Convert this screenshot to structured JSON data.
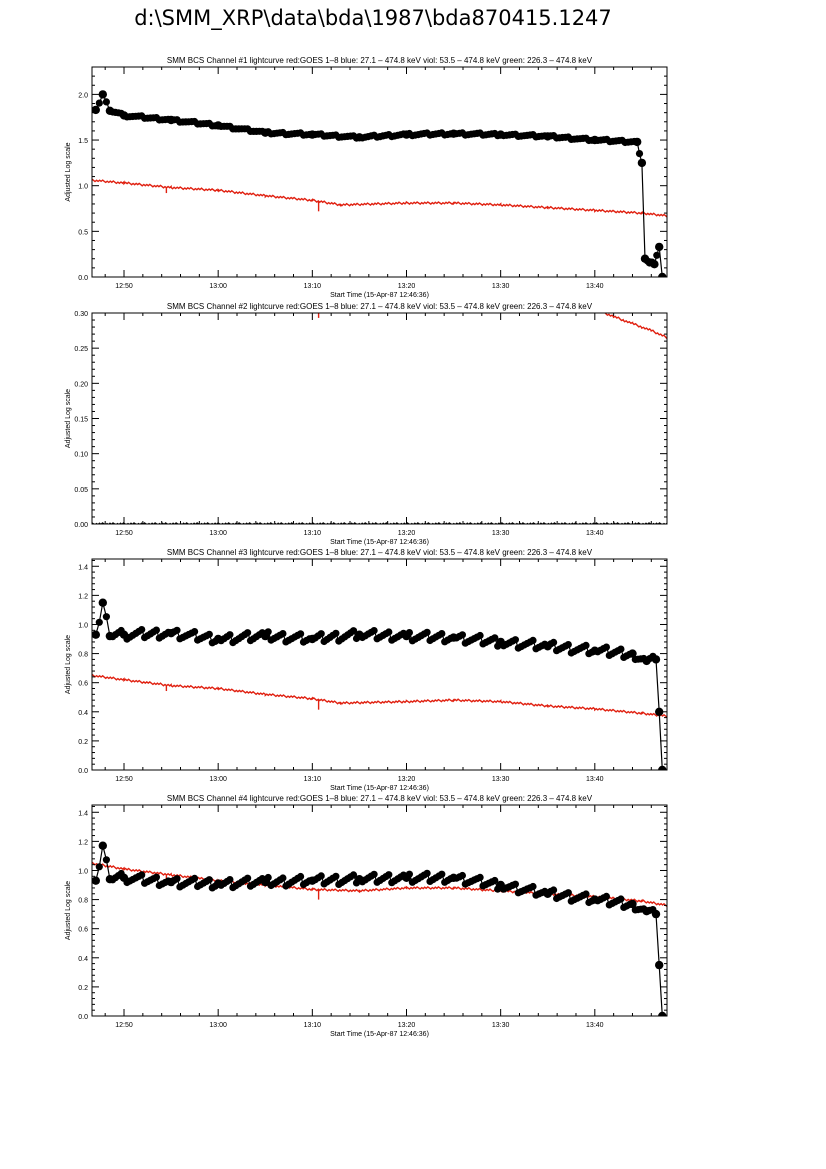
{
  "page": {
    "title": "d:\\SMM_XRP\\data\\bda\\1987\\bda870415.1247"
  },
  "colors": {
    "goes": "#e02010",
    "bcs": "#000000",
    "axis": "#000000",
    "background": "#ffffff"
  },
  "chart_data": [
    {
      "type": "line",
      "title": "SMM BCS Channel #1 lightcurve  red:GOES 1–8  blue: 27.1 – 474.8 keV  viol: 53.5 – 474.8 keV  green: 226.3 – 474.8 keV",
      "xlabel": "Start Time (15-Apr-87 12:46:36)",
      "ylabel": "Adjusted Log scale",
      "xlim": [
        "12:46:36",
        "13:47:40"
      ],
      "ylim": [
        0,
        2.3
      ],
      "xticks": [
        "12:50",
        "13:00",
        "13:10",
        "13:20",
        "13:30",
        "13:40"
      ],
      "yticks": [
        "0.0",
        "0.5",
        "1.0",
        "1.5",
        "2.0"
      ],
      "ytick_values": [
        0,
        0.5,
        1.0,
        1.5,
        2.0
      ],
      "series": [
        {
          "color": "#e02010",
          "style": "line",
          "x": [
            "12:46:36",
            "12:50:00",
            "12:55:00",
            "13:00:00",
            "13:05:00",
            "13:10:00",
            "13:13:00",
            "13:20:00",
            "13:25:00",
            "13:30:00",
            "13:35:00",
            "13:40:00",
            "13:45:00",
            "13:47:40"
          ],
          "y": [
            1.06,
            1.03,
            0.98,
            0.95,
            0.89,
            0.84,
            0.79,
            0.81,
            0.81,
            0.79,
            0.76,
            0.73,
            0.7,
            0.67
          ]
        },
        {
          "color": "#000000",
          "style": "markers",
          "x": [
            "12:47:00",
            "12:47:45",
            "12:48:30",
            "12:50:00",
            "12:55:00",
            "13:00:00",
            "13:05:00",
            "13:10:00",
            "13:15:00",
            "13:20:00",
            "13:25:00",
            "13:30:00",
            "13:35:00",
            "13:40:00",
            "13:44:30",
            "13:45:00",
            "13:45:20",
            "13:45:50",
            "13:46:20",
            "13:46:50",
            "13:47:10"
          ],
          "y": [
            1.83,
            2.0,
            1.82,
            1.77,
            1.72,
            1.66,
            1.58,
            1.56,
            1.53,
            1.56,
            1.57,
            1.56,
            1.54,
            1.5,
            1.48,
            1.25,
            0.2,
            0.16,
            0.14,
            0.33,
            0.0
          ]
        }
      ]
    },
    {
      "type": "line",
      "title": "SMM BCS Channel #2 lightcurve  red:GOES 1–8  blue: 27.1 – 474.8 keV  viol: 53.5 – 474.8 keV  green: 226.3 – 474.8 keV",
      "xlabel": "Start Time (15-Apr-87 12:46:36)",
      "ylabel": "Adjusted Log scale",
      "xlim": [
        "12:46:36",
        "13:47:40"
      ],
      "ylim": [
        0,
        0.3
      ],
      "xticks": [
        "12:50",
        "13:00",
        "13:10",
        "13:20",
        "13:30",
        "13:40"
      ],
      "yticks": [
        "0.00",
        "0.05",
        "0.10",
        "0.15",
        "0.20",
        "0.25",
        "0.30"
      ],
      "ytick_values": [
        0,
        0.05,
        0.1,
        0.15,
        0.2,
        0.25,
        0.3
      ],
      "series": [
        {
          "color": "#e02010",
          "style": "line",
          "x": [
            "13:41:00",
            "13:42:00",
            "13:43:00",
            "13:44:00",
            "13:45:00",
            "13:46:00",
            "13:47:40"
          ],
          "y": [
            0.3,
            0.295,
            0.29,
            0.285,
            0.28,
            0.275,
            0.265
          ]
        },
        {
          "color": "#e02010",
          "style": "line",
          "x": [
            "13:10:40",
            "13:10:40"
          ],
          "y": [
            0.3,
            0.293
          ]
        },
        {
          "color": "#000000",
          "style": "line",
          "x": [
            "12:46:36",
            "13:47:40"
          ],
          "y": [
            0.0,
            0.0
          ]
        }
      ]
    },
    {
      "type": "line",
      "title": "SMM BCS Channel #3 lightcurve  red:GOES 1–8  blue: 27.1 – 474.8 keV  viol: 53.5 – 474.8 keV  green: 226.3 – 474.8 keV",
      "xlabel": "Start Time (15-Apr-87 12:46:36)",
      "ylabel": "Adjusted Log scale",
      "xlim": [
        "12:46:36",
        "13:47:40"
      ],
      "ylim": [
        0,
        1.45
      ],
      "xticks": [
        "12:50",
        "13:00",
        "13:10",
        "13:20",
        "13:30",
        "13:40"
      ],
      "yticks": [
        "0.0",
        "0.2",
        "0.4",
        "0.6",
        "0.8",
        "1.0",
        "1.2",
        "1.4"
      ],
      "ytick_values": [
        0,
        0.2,
        0.4,
        0.6,
        0.8,
        1.0,
        1.2,
        1.4
      ],
      "series": [
        {
          "color": "#e02010",
          "style": "line",
          "x": [
            "12:46:36",
            "12:50:00",
            "12:55:00",
            "13:00:00",
            "13:05:00",
            "13:10:00",
            "13:13:00",
            "13:20:00",
            "13:25:00",
            "13:30:00",
            "13:35:00",
            "13:40:00",
            "13:45:00",
            "13:47:40"
          ],
          "y": [
            0.65,
            0.62,
            0.58,
            0.56,
            0.52,
            0.49,
            0.46,
            0.47,
            0.48,
            0.47,
            0.44,
            0.42,
            0.39,
            0.37
          ]
        },
        {
          "color": "#000000",
          "style": "markers",
          "x": [
            "12:47:00",
            "12:47:45",
            "12:48:30",
            "12:50:00",
            "12:55:00",
            "13:00:00",
            "13:05:00",
            "13:10:00",
            "13:15:00",
            "13:20:00",
            "13:25:00",
            "13:30:00",
            "13:35:00",
            "13:40:00",
            "13:44:00",
            "13:45:30",
            "13:46:30",
            "13:46:50",
            "13:47:10"
          ],
          "y": [
            0.93,
            1.15,
            0.92,
            0.93,
            0.94,
            0.9,
            0.92,
            0.9,
            0.93,
            0.92,
            0.91,
            0.88,
            0.85,
            0.82,
            0.8,
            0.75,
            0.76,
            0.4,
            0.0
          ]
        }
      ]
    },
    {
      "type": "line",
      "title": "SMM BCS Channel #4 lightcurve  red:GOES 1–8  blue: 27.1 – 474.8 keV  viol: 53.5 – 474.8 keV  green: 226.3 – 474.8 keV",
      "xlabel": "Start Time (15-Apr-87 12:46:36)",
      "ylabel": "Adjusted Log scale",
      "xlim": [
        "12:46:36",
        "13:47:40"
      ],
      "ylim": [
        0,
        1.45
      ],
      "xticks": [
        "12:50",
        "13:00",
        "13:10",
        "13:20",
        "13:30",
        "13:40"
      ],
      "yticks": [
        "0.0",
        "0.2",
        "0.4",
        "0.6",
        "0.8",
        "1.0",
        "1.2",
        "1.4"
      ],
      "ytick_values": [
        0,
        0.2,
        0.4,
        0.6,
        0.8,
        1.0,
        1.2,
        1.4
      ],
      "series": [
        {
          "color": "#e02010",
          "style": "line",
          "x": [
            "12:46:36",
            "12:50:00",
            "12:55:00",
            "13:00:00",
            "13:05:00",
            "13:10:00",
            "13:15:00",
            "13:20:00",
            "13:25:00",
            "13:30:00",
            "13:35:00",
            "13:40:00",
            "13:45:00",
            "13:47:40"
          ],
          "y": [
            1.05,
            1.01,
            0.97,
            0.93,
            0.9,
            0.87,
            0.86,
            0.88,
            0.88,
            0.86,
            0.84,
            0.82,
            0.79,
            0.76
          ]
        },
        {
          "color": "#000000",
          "style": "markers",
          "x": [
            "12:47:00",
            "12:47:45",
            "12:48:30",
            "12:50:00",
            "12:55:00",
            "13:00:00",
            "13:05:00",
            "13:10:00",
            "13:15:00",
            "13:20:00",
            "13:25:00",
            "13:30:00",
            "13:35:00",
            "13:40:00",
            "13:44:00",
            "13:45:30",
            "13:46:30",
            "13:46:50",
            "13:47:10"
          ],
          "y": [
            0.93,
            1.17,
            0.94,
            0.95,
            0.92,
            0.91,
            0.92,
            0.93,
            0.94,
            0.95,
            0.95,
            0.9,
            0.84,
            0.8,
            0.77,
            0.72,
            0.7,
            0.35,
            0.0
          ]
        }
      ]
    }
  ]
}
